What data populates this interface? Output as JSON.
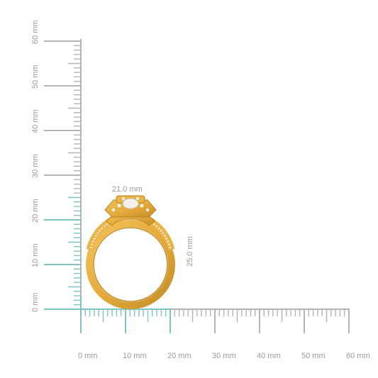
{
  "ruler": {
    "x_labels": [
      "0 mm",
      "10 mm",
      "20 mm",
      "30 mm",
      "40 mm",
      "50 mm",
      "60 mm"
    ],
    "y_labels": [
      "0 mm",
      "10 mm",
      "20 mm",
      "30 mm",
      "40 mm",
      "50 mm",
      "60 mm"
    ],
    "tick_color": "#b4b4b4",
    "highlight_color": "#7ec4c0"
  },
  "measurements": {
    "width_label": "21.0 mm",
    "height_label": "25.0 mm"
  },
  "ring": {
    "metal_color": "#e6ab3c",
    "metal_dark": "#b98422",
    "stone_color": "#f4f1ea"
  }
}
